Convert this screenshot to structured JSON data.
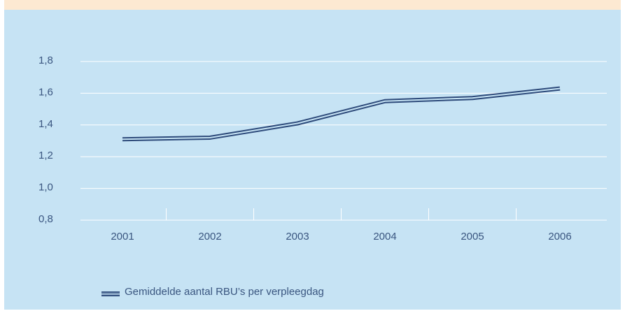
{
  "chart_data": {
    "type": "line",
    "categories": [
      "2001",
      "2002",
      "2003",
      "2004",
      "2005",
      "2006"
    ],
    "series": [
      {
        "name": "Gemiddelde aantal RBU’s per verpleegdag",
        "color": "#2d4a7a",
        "values": [
          1.31,
          1.32,
          1.41,
          1.55,
          1.57,
          1.63
        ]
      }
    ],
    "ylim": [
      0.8,
      1.8
    ],
    "yticks": [
      {
        "value": 0.8,
        "label": "0,8"
      },
      {
        "value": 1.0,
        "label": "1,0"
      },
      {
        "value": 1.2,
        "label": "1,2"
      },
      {
        "value": 1.4,
        "label": "1,4"
      },
      {
        "value": 1.6,
        "label": "1,6"
      },
      {
        "value": 1.8,
        "label": "1,8"
      }
    ],
    "grid": true,
    "legend": "bottom-left"
  }
}
